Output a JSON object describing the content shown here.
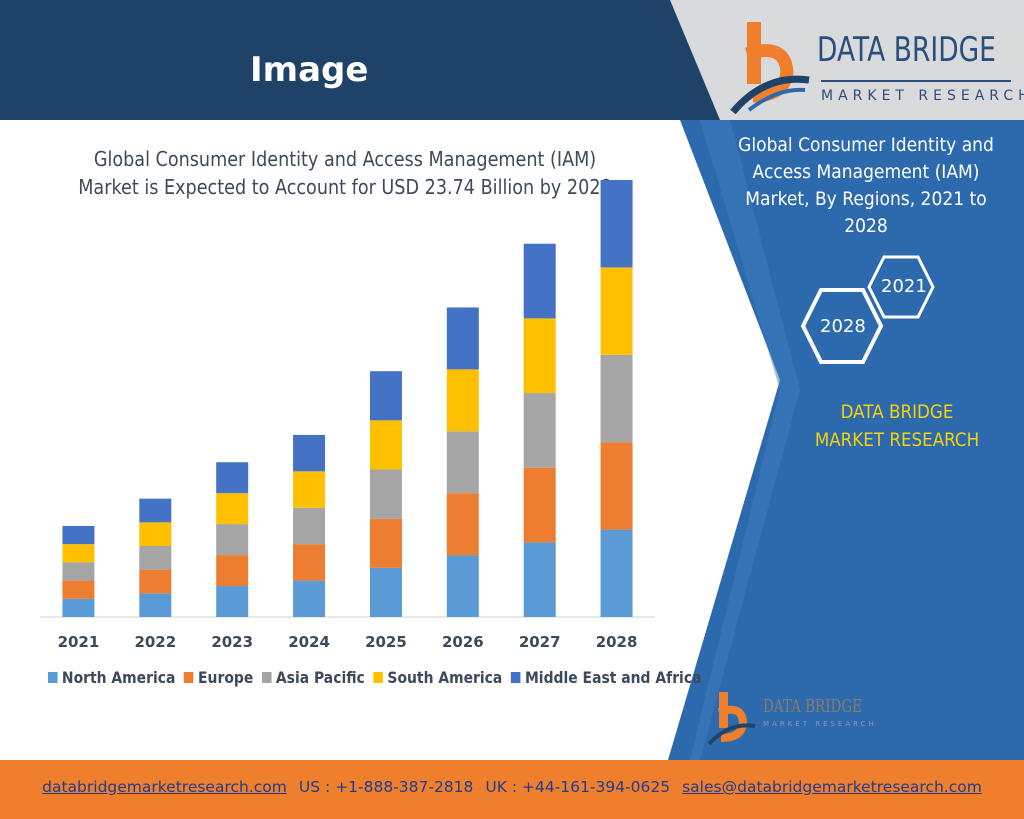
{
  "header": {
    "title": "Image"
  },
  "logo": {
    "brand": "DATA BRIDGE",
    "sub": "MARKET RESEARCH"
  },
  "panel": {
    "title": "Global Consumer Identity and Access Management (IAM) Market, By Regions, 2021 to 2028",
    "hex_2021": "2021",
    "hex_2028": "2028",
    "brand": "DATA BRIDGE MARKET RESEARCH"
  },
  "mini_logo": {
    "brand": "DATA BRIDGE",
    "sub": "MARKET RESEARCH"
  },
  "colors": {
    "header_dark": "#1e4268",
    "panel_blue": "#2d69ad",
    "footer_orange": "#ef7f2d",
    "brand_yellow": "#f5d20f"
  },
  "chart_data": {
    "type": "bar",
    "stacked": true,
    "title": "Global Consumer Identity and Access Management (IAM) Market is Expected to Account for USD 23.74 Billion by 2028",
    "categories": [
      "2021",
      "2022",
      "2023",
      "2024",
      "2025",
      "2026",
      "2027",
      "2028"
    ],
    "series": [
      {
        "name": "North America",
        "color": "#5b9bd5",
        "values": [
          1.0,
          1.3,
          1.7,
          2.0,
          2.7,
          3.4,
          4.1,
          4.8
        ]
      },
      {
        "name": "Europe",
        "color": "#ed7d31",
        "values": [
          1.0,
          1.3,
          1.7,
          2.0,
          2.7,
          3.4,
          4.1,
          4.8
        ]
      },
      {
        "name": "Asia Pacific",
        "color": "#a5a5a5",
        "values": [
          1.0,
          1.3,
          1.7,
          2.0,
          2.7,
          3.4,
          4.1,
          4.8
        ]
      },
      {
        "name": "South America",
        "color": "#ffc000",
        "values": [
          1.0,
          1.3,
          1.7,
          2.0,
          2.7,
          3.4,
          4.1,
          4.8
        ]
      },
      {
        "name": "Middle East and Africa",
        "color": "#4472c4",
        "values": [
          1.0,
          1.3,
          1.7,
          2.0,
          2.7,
          3.4,
          4.1,
          4.8
        ]
      }
    ],
    "xlabel": "",
    "ylabel": "",
    "ylim": [
      0,
      24
    ],
    "grid": false,
    "legend_position": "bottom"
  },
  "footer": {
    "website": "databridgemarketresearch.com",
    "us_phone": "US : +1-888-387-2818",
    "uk_phone": "UK : +44-161-394-0625",
    "email": "sales@databridgemarketresearch.com"
  }
}
